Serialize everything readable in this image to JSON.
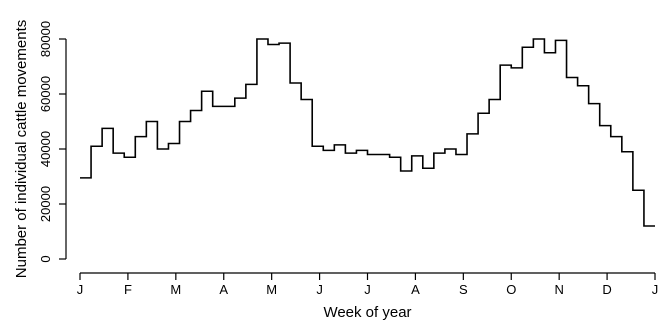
{
  "chart_data": {
    "type": "line",
    "step": true,
    "xlabel": "Week of year",
    "ylabel": "Number of individual cattle movements",
    "x_tick_labels": [
      "J",
      "F",
      "M",
      "A",
      "M",
      "J",
      "J",
      "A",
      "S",
      "O",
      "N",
      "D",
      "J"
    ],
    "y_tick_labels": [
      "0",
      "20000",
      "40000",
      "60000",
      "80000"
    ],
    "y_ticks": [
      0,
      20000,
      40000,
      60000,
      80000
    ],
    "ylim": [
      0,
      80000
    ],
    "xlim": [
      1,
      53
    ],
    "grid": false,
    "series": [
      {
        "values": [
          29500,
          41000,
          47500,
          38500,
          37000,
          44500,
          50000,
          40000,
          42000,
          50000,
          54000,
          61000,
          55500,
          55500,
          58500,
          63500,
          80000,
          78000,
          78500,
          64000,
          58000,
          41000,
          39500,
          41500,
          38500,
          39500,
          38000,
          38000,
          37000,
          32000,
          37500,
          33000,
          38500,
          40000,
          38000,
          45500,
          53000,
          58000,
          70500,
          69500,
          77000,
          80000,
          75000,
          79500,
          66000,
          63000,
          56500,
          48500,
          44500,
          39000,
          25000,
          12000
        ]
      }
    ]
  }
}
